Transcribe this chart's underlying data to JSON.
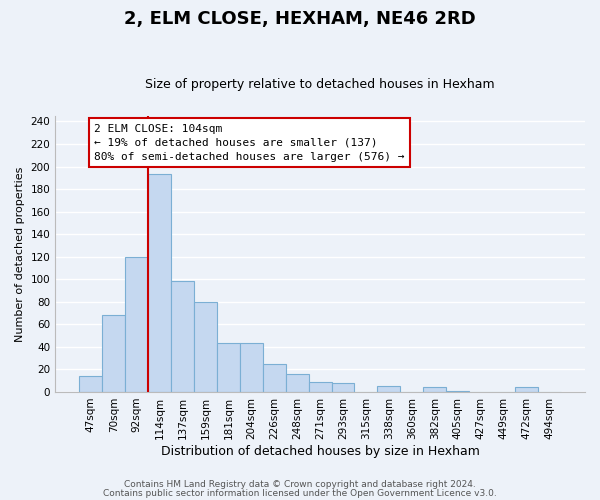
{
  "title": "2, ELM CLOSE, HEXHAM, NE46 2RD",
  "subtitle": "Size of property relative to detached houses in Hexham",
  "xlabel": "Distribution of detached houses by size in Hexham",
  "ylabel": "Number of detached properties",
  "categories": [
    "47sqm",
    "70sqm",
    "92sqm",
    "114sqm",
    "137sqm",
    "159sqm",
    "181sqm",
    "204sqm",
    "226sqm",
    "248sqm",
    "271sqm",
    "293sqm",
    "315sqm",
    "338sqm",
    "360sqm",
    "382sqm",
    "405sqm",
    "427sqm",
    "449sqm",
    "472sqm",
    "494sqm"
  ],
  "values": [
    14,
    68,
    120,
    193,
    98,
    80,
    43,
    43,
    25,
    16,
    9,
    8,
    0,
    5,
    0,
    4,
    1,
    0,
    0,
    4,
    0
  ],
  "bar_color": "#c5d8f0",
  "bar_edge_color": "#7bafd4",
  "vline_x": 3,
  "vline_color": "#cc0000",
  "annotation_title": "2 ELM CLOSE: 104sqm",
  "annotation_line1": "← 19% of detached houses are smaller (137)",
  "annotation_line2": "80% of semi-detached houses are larger (576) →",
  "annotation_box_color": "#ffffff",
  "annotation_box_edge": "#cc0000",
  "ylim": [
    0,
    245
  ],
  "yticks": [
    0,
    20,
    40,
    60,
    80,
    100,
    120,
    140,
    160,
    180,
    200,
    220,
    240
  ],
  "footer1": "Contains HM Land Registry data © Crown copyright and database right 2024.",
  "footer2": "Contains public sector information licensed under the Open Government Licence v3.0.",
  "bg_color": "#edf2f9",
  "plot_bg_color": "#edf2f9",
  "grid_color": "#ffffff",
  "title_fontsize": 13,
  "subtitle_fontsize": 9,
  "ylabel_fontsize": 8,
  "xlabel_fontsize": 9,
  "tick_fontsize": 7.5,
  "annotation_fontsize": 8,
  "footer_fontsize": 6.5
}
